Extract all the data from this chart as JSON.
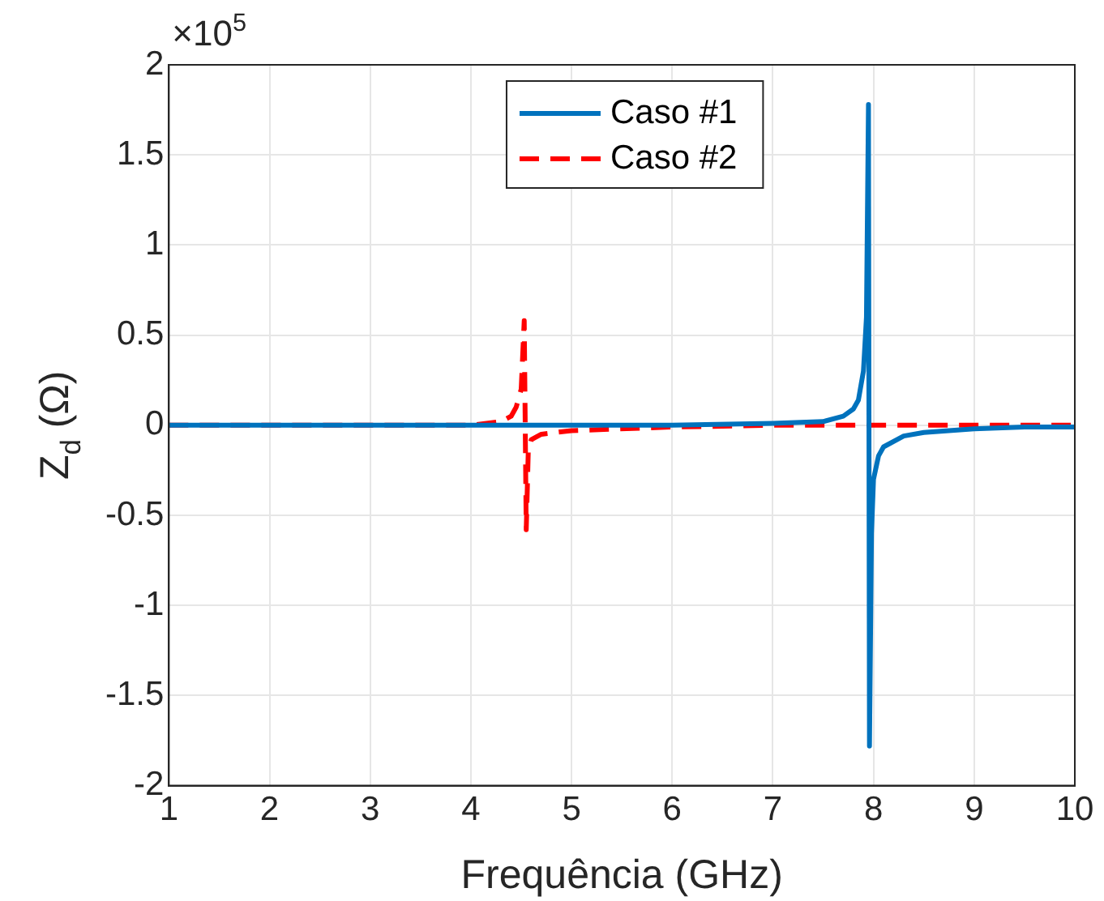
{
  "chart_data": {
    "type": "line",
    "xlabel": "Frequência (GHz)",
    "ylabel": "Z$_{d}$ (Ω)",
    "annotations": [
      "×10$^{5}$"
    ],
    "xlim": [
      1,
      10
    ],
    "xticks": [
      1,
      2,
      3,
      4,
      5,
      6,
      7,
      8,
      9,
      10
    ],
    "ylim": [
      -2,
      2
    ],
    "yticks": [
      -2,
      -1.5,
      -1,
      -0.5,
      0,
      0.5,
      1,
      1.5,
      2
    ],
    "grid": true,
    "legend": "top",
    "marker": "none",
    "series": [
      {
        "name": "Caso #1",
        "color": "#0072bd",
        "line_style": "solid",
        "x": [
          1,
          3,
          5,
          6,
          7,
          7.5,
          7.7,
          7.8,
          7.85,
          7.9,
          7.93,
          7.95,
          7.96,
          7.98,
          8.0,
          8.05,
          8.1,
          8.3,
          8.5,
          9,
          9.5,
          10
        ],
        "values": [
          0,
          0,
          0,
          0,
          0.01,
          0.02,
          0.05,
          0.09,
          0.14,
          0.3,
          0.6,
          1.78,
          -1.78,
          -0.6,
          -0.3,
          -0.17,
          -0.12,
          -0.06,
          -0.04,
          -0.02,
          -0.01,
          -0.01
        ]
      },
      {
        "name": "Caso #2",
        "color": "#ff0000",
        "line_style": "dashed",
        "x": [
          1,
          3,
          4,
          4.3,
          4.4,
          4.45,
          4.5,
          4.53,
          4.55,
          4.57,
          4.6,
          4.7,
          5,
          6,
          7,
          8,
          9,
          10
        ],
        "values": [
          0,
          0,
          0,
          0.02,
          0.05,
          0.1,
          0.2,
          0.58,
          -0.58,
          -0.15,
          -0.08,
          -0.05,
          -0.03,
          -0.01,
          0,
          0,
          0,
          0
        ]
      }
    ]
  }
}
